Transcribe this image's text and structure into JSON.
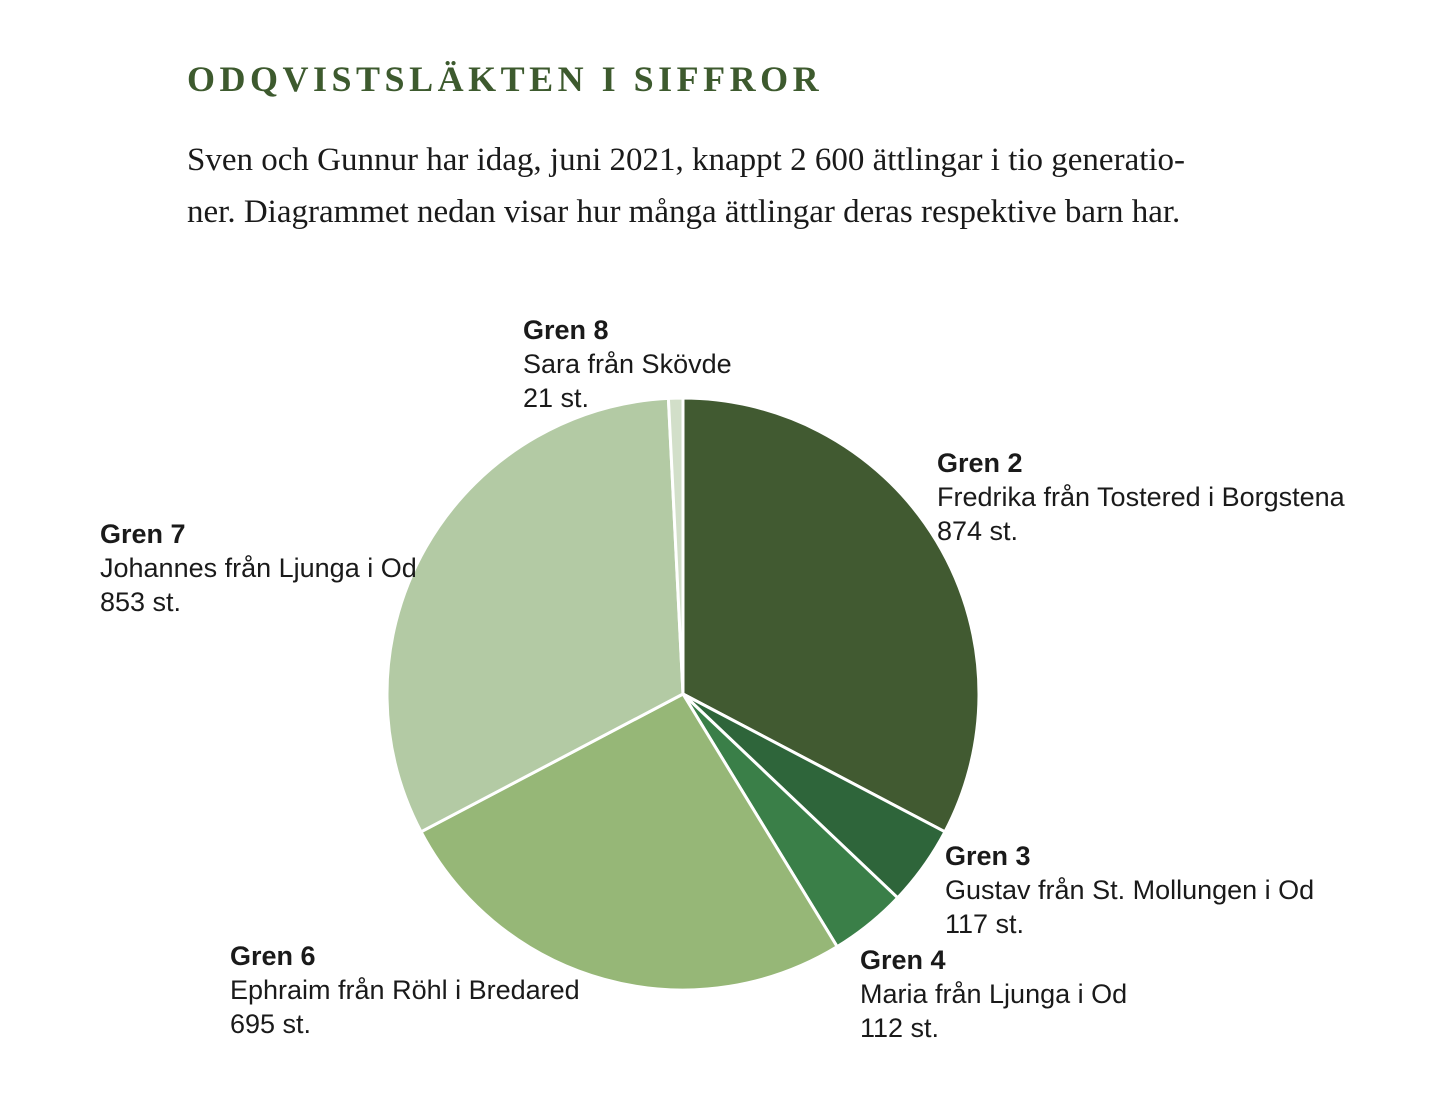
{
  "heading": "ODQVISTSLÄKTEN I SIFFROR",
  "intro": {
    "line1": "Sven och Gunnur har idag, juni 2021, knappt 2 600 ättlingar i tio generatio-",
    "line2": "ner. Diagrammet nedan visar hur många ättlingar deras respektive barn har."
  },
  "chart_data": {
    "type": "pie",
    "start_angle": "12 o'clock",
    "direction": "clockwise",
    "slices": [
      {
        "branch": "Gren 2",
        "person": "Fredrika från Tostered i Borgstena",
        "count_label": "874 st.",
        "value": 874,
        "color": "#415a31"
      },
      {
        "branch": "Gren 3",
        "person": "Gustav från St. Mollungen i Od",
        "count_label": "117 st.",
        "value": 117,
        "color": "#2e653a"
      },
      {
        "branch": "Gren 4",
        "person": "Maria från Ljunga i Od",
        "count_label": "112 st.",
        "value": 112,
        "color": "#3a7f48"
      },
      {
        "branch": "Gren 6",
        "person": "Ephraim från Röhl i Bredared",
        "count_label": "695 st.",
        "value": 695,
        "color": "#96b777"
      },
      {
        "branch": "Gren 7",
        "person": "Johannes från Ljunga i Od",
        "count_label": "853 st.",
        "value": 853,
        "color": "#b3caa4"
      },
      {
        "branch": "Gren 8",
        "person": "Sara från Skövde",
        "count_label": "21 st.",
        "value": 21,
        "color": "#d2dfc9"
      }
    ]
  }
}
